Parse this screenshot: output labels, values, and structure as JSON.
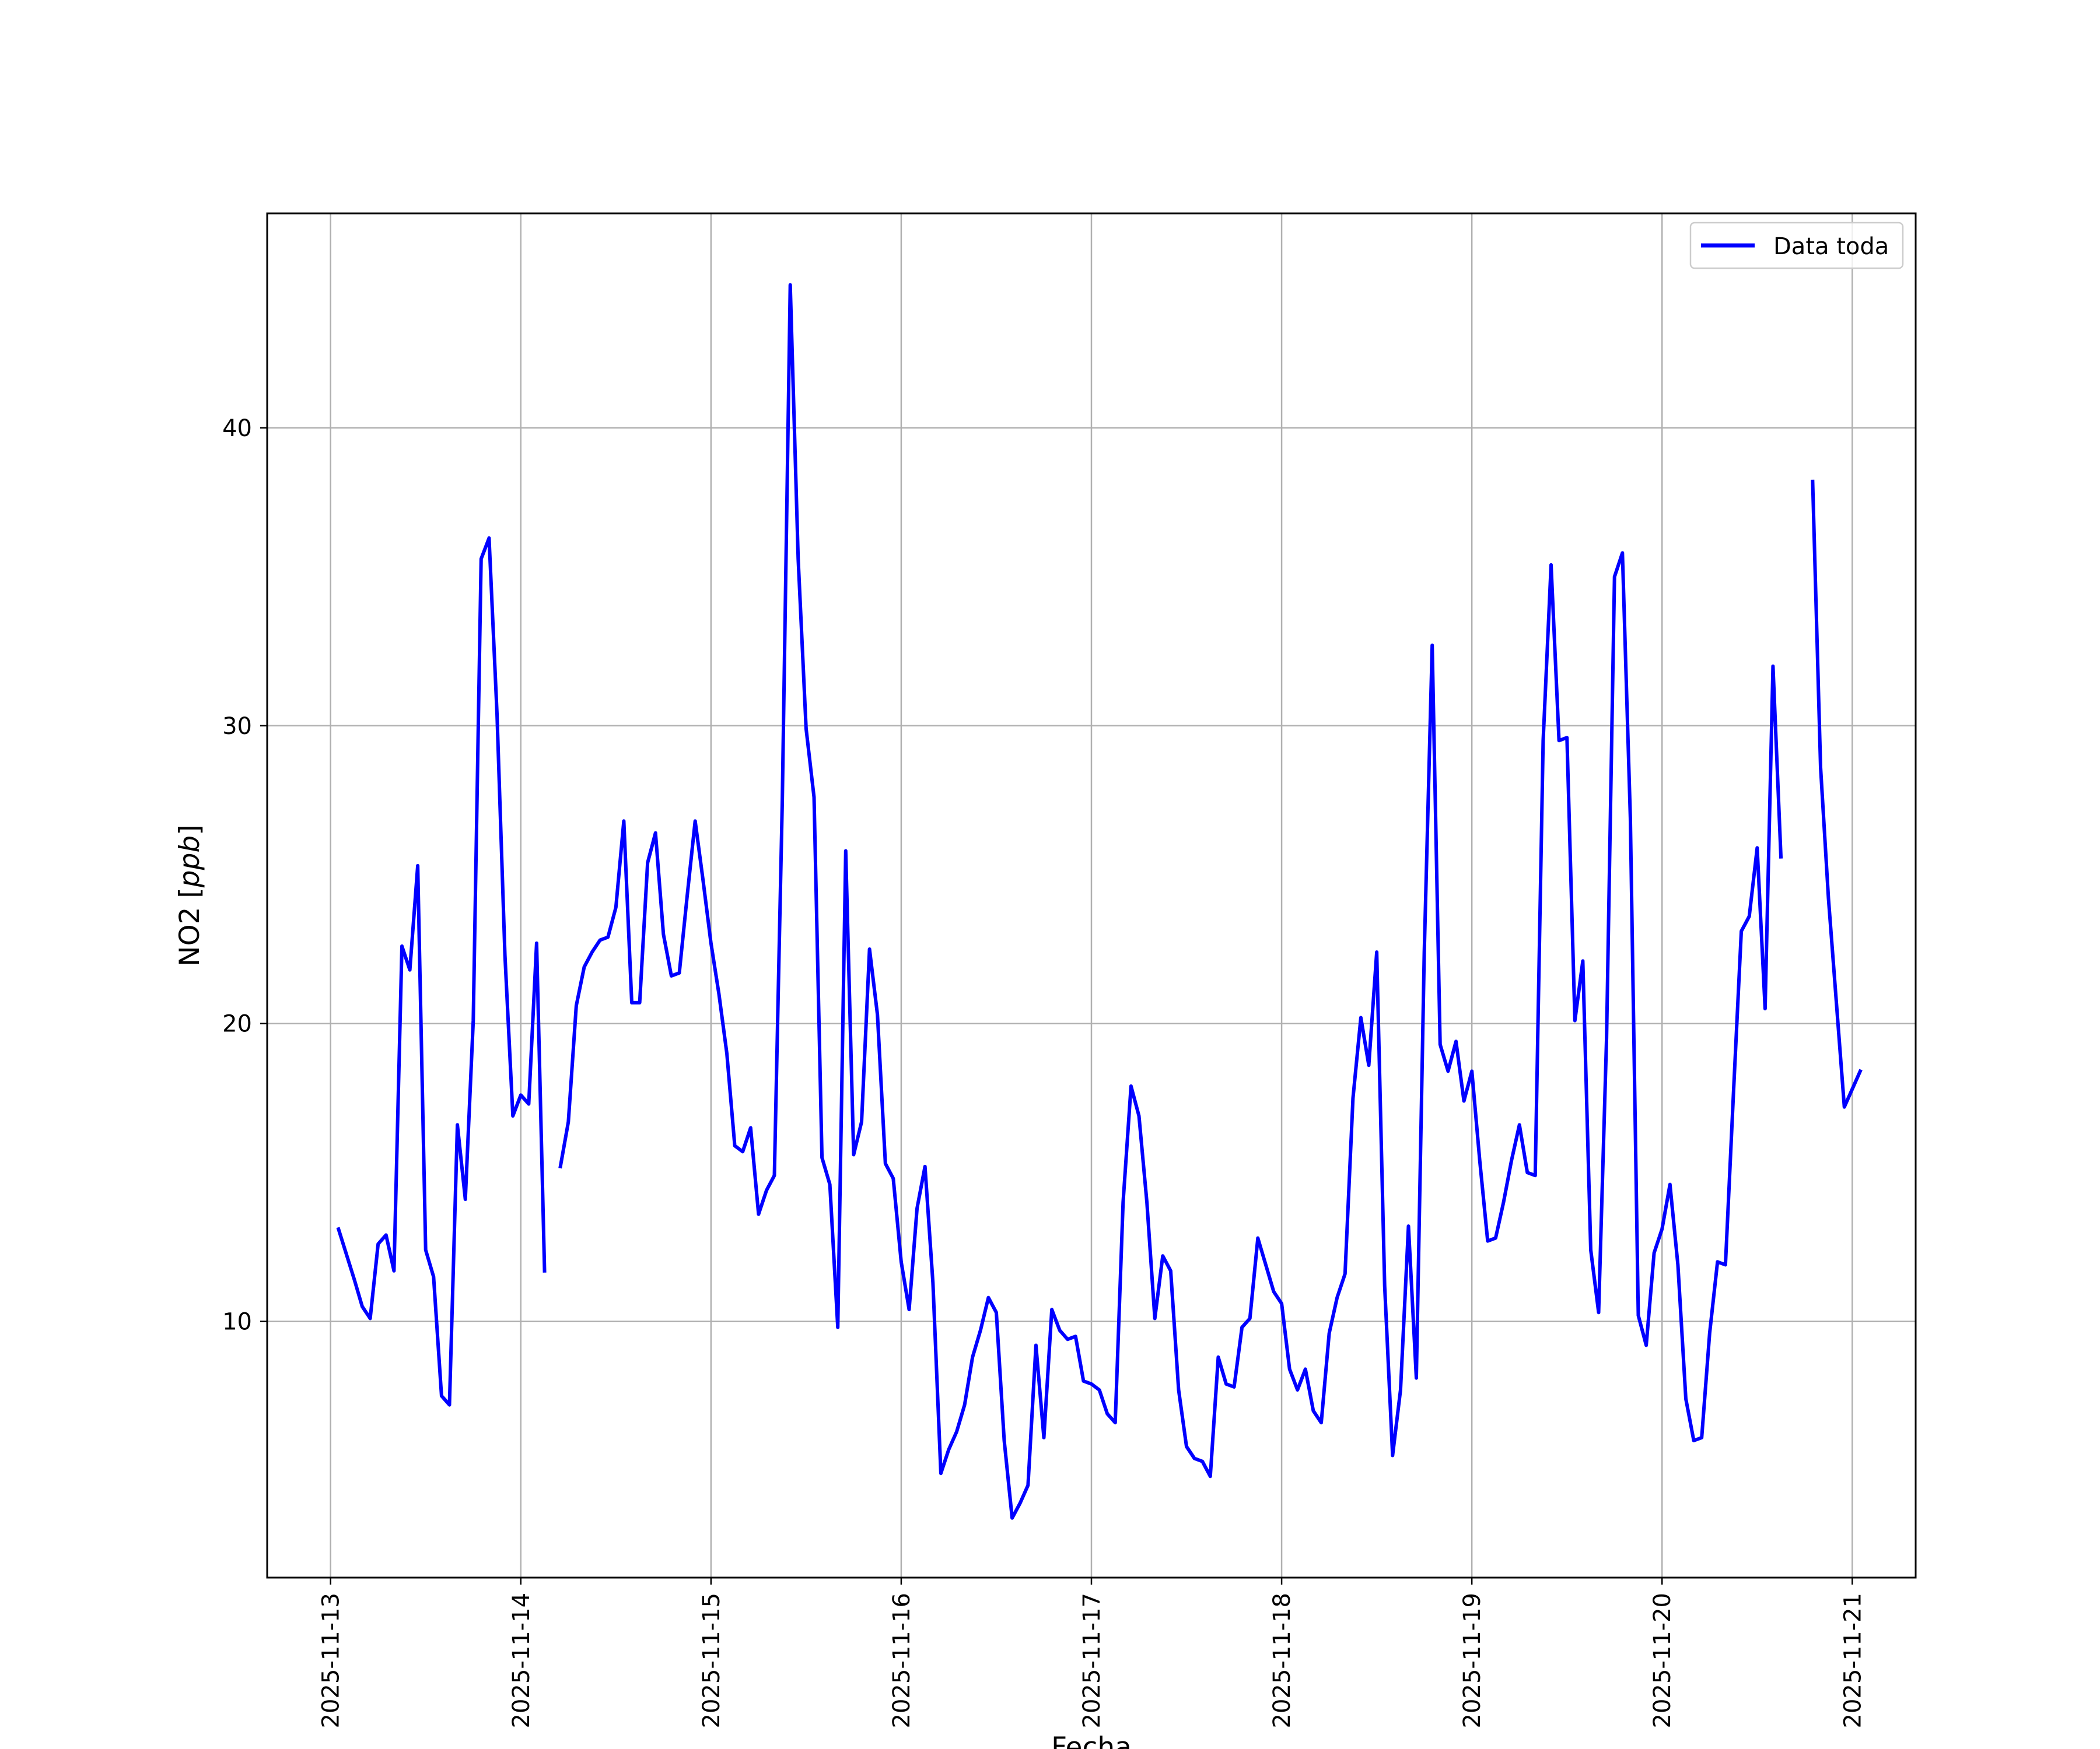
{
  "chart_data": {
    "type": "line",
    "title": "",
    "xlabel": "Fecha",
    "ylabel": "NO2 [",
    "ylabel_unit": "ppb",
    "ylabel_close": "]",
    "x_ticks": [
      "2025-11-13",
      "2025-11-14",
      "2025-11-15",
      "2025-11-16",
      "2025-11-17",
      "2025-11-18",
      "2025-11-19",
      "2025-11-20",
      "2025-11-21"
    ],
    "y_ticks": [
      "10",
      "20",
      "30",
      "40"
    ],
    "xlim": [
      "2025-11-12T16:00",
      "2025-11-21T08:00"
    ],
    "ylim": [
      1.4,
      47.2
    ],
    "grid": true,
    "legend": {
      "position": "top-right",
      "entries": [
        "Data toda"
      ]
    },
    "series": [
      {
        "name": "Data toda",
        "color": "#0000ff",
        "segments": [
          [
            [
              "2025-11-13T01:00",
              13.1
            ],
            [
              "2025-11-13T03:00",
              11.4
            ],
            [
              "2025-11-13T04:00",
              10.5
            ],
            [
              "2025-11-13T05:00",
              10.1
            ],
            [
              "2025-11-13T06:00",
              12.6
            ],
            [
              "2025-11-13T07:00",
              12.9
            ],
            [
              "2025-11-13T08:00",
              11.7
            ],
            [
              "2025-11-13T09:00",
              22.6
            ],
            [
              "2025-11-13T10:00",
              21.8
            ],
            [
              "2025-11-13T11:00",
              25.3
            ],
            [
              "2025-11-13T12:00",
              12.4
            ],
            [
              "2025-11-13T13:00",
              11.5
            ],
            [
              "2025-11-13T14:00",
              7.5
            ],
            [
              "2025-11-13T15:00",
              7.2
            ],
            [
              "2025-11-13T16:00",
              16.6
            ],
            [
              "2025-11-13T17:00",
              14.1
            ],
            [
              "2025-11-13T18:00",
              20.1
            ],
            [
              "2025-11-13T19:00",
              35.6
            ],
            [
              "2025-11-13T20:00",
              36.3
            ],
            [
              "2025-11-13T21:00",
              30.4
            ],
            [
              "2025-11-13T22:00",
              22.3
            ],
            [
              "2025-11-13T23:00",
              16.9
            ],
            [
              "2025-11-14T00:00",
              17.6
            ],
            [
              "2025-11-14T01:00",
              17.3
            ],
            [
              "2025-11-14T02:00",
              22.7
            ],
            [
              "2025-11-14T03:00",
              11.7
            ]
          ],
          [
            [
              "2025-11-14T05:00",
              15.2
            ],
            [
              "2025-11-14T06:00",
              16.7
            ],
            [
              "2025-11-14T07:00",
              20.6
            ],
            [
              "2025-11-14T08:00",
              21.9
            ],
            [
              "2025-11-14T09:00",
              22.4
            ],
            [
              "2025-11-14T10:00",
              22.8
            ],
            [
              "2025-11-14T11:00",
              22.9
            ],
            [
              "2025-11-14T12:00",
              23.9
            ],
            [
              "2025-11-14T13:00",
              26.8
            ],
            [
              "2025-11-14T14:00",
              20.7
            ],
            [
              "2025-11-14T15:00",
              20.7
            ],
            [
              "2025-11-14T16:00",
              25.4
            ],
            [
              "2025-11-14T17:00",
              26.4
            ],
            [
              "2025-11-14T18:00",
              23.0
            ],
            [
              "2025-11-14T19:00",
              21.6
            ],
            [
              "2025-11-14T20:00",
              21.7
            ],
            [
              "2025-11-14T21:00",
              24.3
            ],
            [
              "2025-11-14T22:00",
              26.8
            ],
            [
              "2025-11-14T23:00",
              24.8
            ],
            [
              "2025-11-15T00:00",
              22.7
            ],
            [
              "2025-11-15T01:00",
              21.0
            ],
            [
              "2025-11-15T02:00",
              19.0
            ],
            [
              "2025-11-15T03:00",
              15.9
            ],
            [
              "2025-11-15T04:00",
              15.7
            ],
            [
              "2025-11-15T05:00",
              16.5
            ],
            [
              "2025-11-15T06:00",
              13.6
            ],
            [
              "2025-11-15T07:00",
              14.4
            ],
            [
              "2025-11-15T08:00",
              14.9
            ],
            [
              "2025-11-15T09:00",
              27.5
            ],
            [
              "2025-11-15T10:00",
              44.8
            ],
            [
              "2025-11-15T11:00",
              35.6
            ],
            [
              "2025-11-15T12:00",
              29.9
            ],
            [
              "2025-11-15T13:00",
              27.6
            ],
            [
              "2025-11-15T14:00",
              15.5
            ],
            [
              "2025-11-15T15:00",
              14.6
            ],
            [
              "2025-11-15T16:00",
              9.8
            ],
            [
              "2025-11-15T17:00",
              25.8
            ],
            [
              "2025-11-15T18:00",
              15.6
            ],
            [
              "2025-11-15T19:00",
              16.7
            ],
            [
              "2025-11-15T20:00",
              22.5
            ],
            [
              "2025-11-15T21:00",
              20.3
            ],
            [
              "2025-11-15T22:00",
              15.3
            ],
            [
              "2025-11-15T23:00",
              14.8
            ],
            [
              "2025-11-16T00:00",
              12.0
            ],
            [
              "2025-11-16T01:00",
              10.4
            ],
            [
              "2025-11-16T02:00",
              13.8
            ],
            [
              "2025-11-16T03:00",
              15.2
            ],
            [
              "2025-11-16T04:00",
              11.3
            ],
            [
              "2025-11-16T05:00",
              4.9
            ],
            [
              "2025-11-16T06:00",
              5.7
            ],
            [
              "2025-11-16T07:00",
              6.3
            ],
            [
              "2025-11-16T08:00",
              7.2
            ],
            [
              "2025-11-16T09:00",
              8.8
            ],
            [
              "2025-11-16T10:00",
              9.7
            ],
            [
              "2025-11-16T11:00",
              10.8
            ],
            [
              "2025-11-16T12:00",
              10.3
            ],
            [
              "2025-11-16T13:00",
              6.0
            ],
            [
              "2025-11-16T14:00",
              3.4
            ],
            [
              "2025-11-16T15:00",
              3.9
            ],
            [
              "2025-11-16T16:00",
              4.5
            ],
            [
              "2025-11-16T17:00",
              9.2
            ],
            [
              "2025-11-16T18:00",
              6.1
            ],
            [
              "2025-11-16T19:00",
              10.4
            ],
            [
              "2025-11-16T20:00",
              9.7
            ],
            [
              "2025-11-16T21:00",
              9.4
            ],
            [
              "2025-11-16T22:00",
              9.5
            ],
            [
              "2025-11-16T23:00",
              8.0
            ],
            [
              "2025-11-17T00:00",
              7.9
            ],
            [
              "2025-11-17T01:00",
              7.7
            ],
            [
              "2025-11-17T02:00",
              6.9
            ],
            [
              "2025-11-17T03:00",
              6.6
            ],
            [
              "2025-11-17T04:00",
              14.0
            ],
            [
              "2025-11-17T05:00",
              17.9
            ],
            [
              "2025-11-17T06:00",
              16.9
            ],
            [
              "2025-11-17T07:00",
              14.0
            ],
            [
              "2025-11-17T08:00",
              10.1
            ],
            [
              "2025-11-17T09:00",
              12.2
            ],
            [
              "2025-11-17T10:00",
              11.7
            ],
            [
              "2025-11-17T11:00",
              7.7
            ],
            [
              "2025-11-17T12:00",
              5.8
            ],
            [
              "2025-11-17T13:00",
              5.4
            ],
            [
              "2025-11-17T14:00",
              5.3
            ],
            [
              "2025-11-17T15:00",
              4.8
            ],
            [
              "2025-11-17T16:00",
              8.8
            ],
            [
              "2025-11-17T17:00",
              7.9
            ],
            [
              "2025-11-17T18:00",
              7.8
            ],
            [
              "2025-11-17T19:00",
              9.8
            ],
            [
              "2025-11-17T20:00",
              10.1
            ],
            [
              "2025-11-17T21:00",
              12.8
            ],
            [
              "2025-11-17T22:00",
              11.9
            ],
            [
              "2025-11-17T23:00",
              11.0
            ],
            [
              "2025-11-18T00:00",
              10.6
            ],
            [
              "2025-11-18T01:00",
              8.4
            ],
            [
              "2025-11-18T02:00",
              7.7
            ],
            [
              "2025-11-18T03:00",
              8.4
            ],
            [
              "2025-11-18T04:00",
              7.0
            ],
            [
              "2025-11-18T05:00",
              6.6
            ],
            [
              "2025-11-18T06:00",
              9.6
            ],
            [
              "2025-11-18T07:00",
              10.8
            ],
            [
              "2025-11-18T08:00",
              11.6
            ],
            [
              "2025-11-18T09:00",
              17.5
            ],
            [
              "2025-11-18T10:00",
              20.2
            ],
            [
              "2025-11-18T11:00",
              18.6
            ],
            [
              "2025-11-18T12:00",
              22.4
            ],
            [
              "2025-11-18T13:00",
              11.2
            ],
            [
              "2025-11-18T14:00",
              5.5
            ],
            [
              "2025-11-18T15:00",
              7.7
            ],
            [
              "2025-11-18T16:00",
              13.2
            ],
            [
              "2025-11-18T17:00",
              8.1
            ],
            [
              "2025-11-18T18:00",
              22.4
            ],
            [
              "2025-11-18T19:00",
              32.7
            ],
            [
              "2025-11-18T20:00",
              19.3
            ],
            [
              "2025-11-18T21:00",
              18.4
            ],
            [
              "2025-11-18T22:00",
              19.4
            ],
            [
              "2025-11-18T23:00",
              17.4
            ],
            [
              "2025-11-19T00:00",
              18.4
            ],
            [
              "2025-11-19T01:00",
              15.4
            ],
            [
              "2025-11-19T02:00",
              12.7
            ],
            [
              "2025-11-19T03:00",
              12.8
            ],
            [
              "2025-11-19T04:00",
              14.0
            ],
            [
              "2025-11-19T05:00",
              15.4
            ],
            [
              "2025-11-19T06:00",
              16.6
            ],
            [
              "2025-11-19T07:00",
              15.0
            ],
            [
              "2025-11-19T08:00",
              14.9
            ],
            [
              "2025-11-19T09:00",
              29.5
            ],
            [
              "2025-11-19T10:00",
              35.4
            ],
            [
              "2025-11-19T11:00",
              29.5
            ],
            [
              "2025-11-19T12:00",
              29.6
            ],
            [
              "2025-11-19T13:00",
              20.1
            ],
            [
              "2025-11-19T14:00",
              22.1
            ],
            [
              "2025-11-19T15:00",
              12.4
            ],
            [
              "2025-11-19T16:00",
              10.3
            ],
            [
              "2025-11-19T17:00",
              19.5
            ],
            [
              "2025-11-19T18:00",
              35.0
            ],
            [
              "2025-11-19T19:00",
              35.8
            ],
            [
              "2025-11-19T20:00",
              26.9
            ],
            [
              "2025-11-19T21:00",
              10.2
            ],
            [
              "2025-11-19T22:00",
              9.2
            ],
            [
              "2025-11-19T23:00",
              12.3
            ],
            [
              "2025-11-20T00:00",
              13.1
            ],
            [
              "2025-11-20T01:00",
              14.6
            ],
            [
              "2025-11-20T02:00",
              11.9
            ],
            [
              "2025-11-20T03:00",
              7.4
            ],
            [
              "2025-11-20T04:00",
              6.0
            ],
            [
              "2025-11-20T05:00",
              6.1
            ],
            [
              "2025-11-20T06:00",
              9.6
            ],
            [
              "2025-11-20T07:00",
              12.0
            ],
            [
              "2025-11-20T08:00",
              11.9
            ],
            [
              "2025-11-20T09:00",
              17.6
            ],
            [
              "2025-11-20T10:00",
              23.1
            ],
            [
              "2025-11-20T11:00",
              23.6
            ],
            [
              "2025-11-20T12:00",
              25.9
            ],
            [
              "2025-11-20T13:00",
              20.5
            ],
            [
              "2025-11-20T14:00",
              32.0
            ],
            [
              "2025-11-20T15:00",
              25.6
            ]
          ],
          [
            [
              "2025-11-20T19:00",
              38.2
            ],
            [
              "2025-11-20T20:00",
              28.6
            ],
            [
              "2025-11-20T21:00",
              24.2
            ],
            [
              "2025-11-20T22:00",
              20.7
            ],
            [
              "2025-11-20T23:00",
              17.2
            ],
            [
              "2025-11-21T00:00",
              17.8
            ],
            [
              "2025-11-21T01:00",
              18.4
            ]
          ]
        ]
      }
    ]
  }
}
